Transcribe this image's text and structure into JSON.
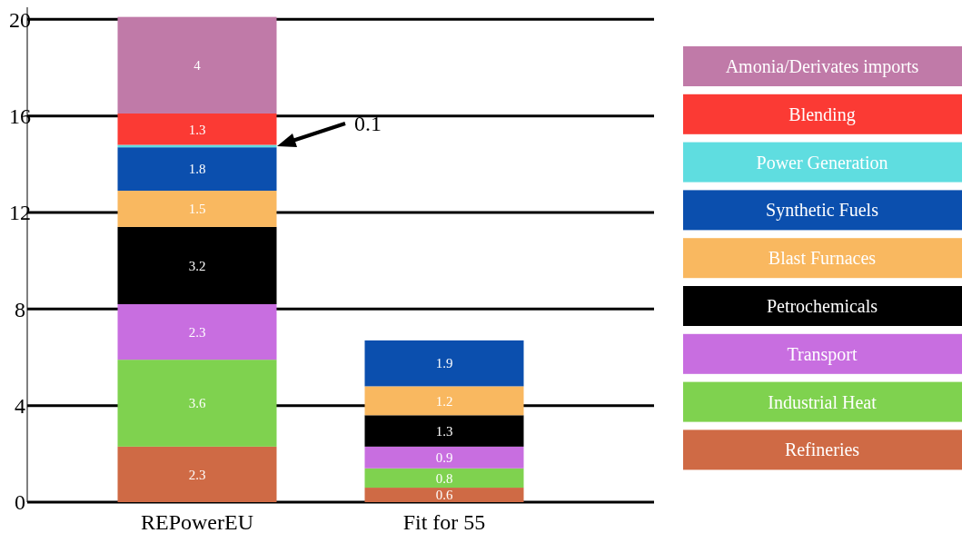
{
  "chart_data": {
    "type": "bar",
    "stacked": true,
    "categories": [
      "REPowerEU",
      "Fit for 55"
    ],
    "series": [
      {
        "name": "Refineries",
        "color": "#cf6a45",
        "values": [
          2.3,
          0.6
        ],
        "value_labels": [
          "2.3",
          "0.6"
        ]
      },
      {
        "name": "Industrial Heat",
        "color": "#7fd24f",
        "values": [
          3.6,
          0.8
        ],
        "value_labels": [
          "3.6",
          "0.8"
        ]
      },
      {
        "name": "Transport",
        "color": "#c86ee0",
        "values": [
          2.3,
          0.9
        ],
        "value_labels": [
          "2.3",
          "0.9"
        ]
      },
      {
        "name": "Petrochemicals",
        "color": "#000000",
        "values": [
          3.2,
          1.3
        ],
        "value_labels": [
          "3.2",
          "1.3"
        ]
      },
      {
        "name": "Blast Furnaces",
        "color": "#f9b860",
        "values": [
          1.5,
          1.2
        ],
        "value_labels": [
          "1.5",
          "1.2"
        ]
      },
      {
        "name": "Synthetic Fuels",
        "color": "#0b4fae",
        "values": [
          1.8,
          1.9
        ],
        "value_labels": [
          "1.8",
          "1.9"
        ]
      },
      {
        "name": "Power Generation",
        "color": "#5fdde0",
        "values": [
          0.1,
          null
        ],
        "value_labels": [
          null,
          null
        ]
      },
      {
        "name": "Blending",
        "color": "#fb3a34",
        "values": [
          1.3,
          null
        ],
        "value_labels": [
          "1.3",
          null
        ]
      },
      {
        "name": "Amonia/Derivates imports",
        "color": "#c07aa8",
        "values": [
          4,
          null
        ],
        "value_labels": [
          "4",
          null
        ]
      }
    ],
    "ylim": [
      0,
      20.5
    ],
    "yticks": [
      0,
      4,
      8,
      12,
      16,
      20
    ],
    "grid": "y",
    "legend": "right",
    "annotations": [
      "0.1"
    ]
  }
}
